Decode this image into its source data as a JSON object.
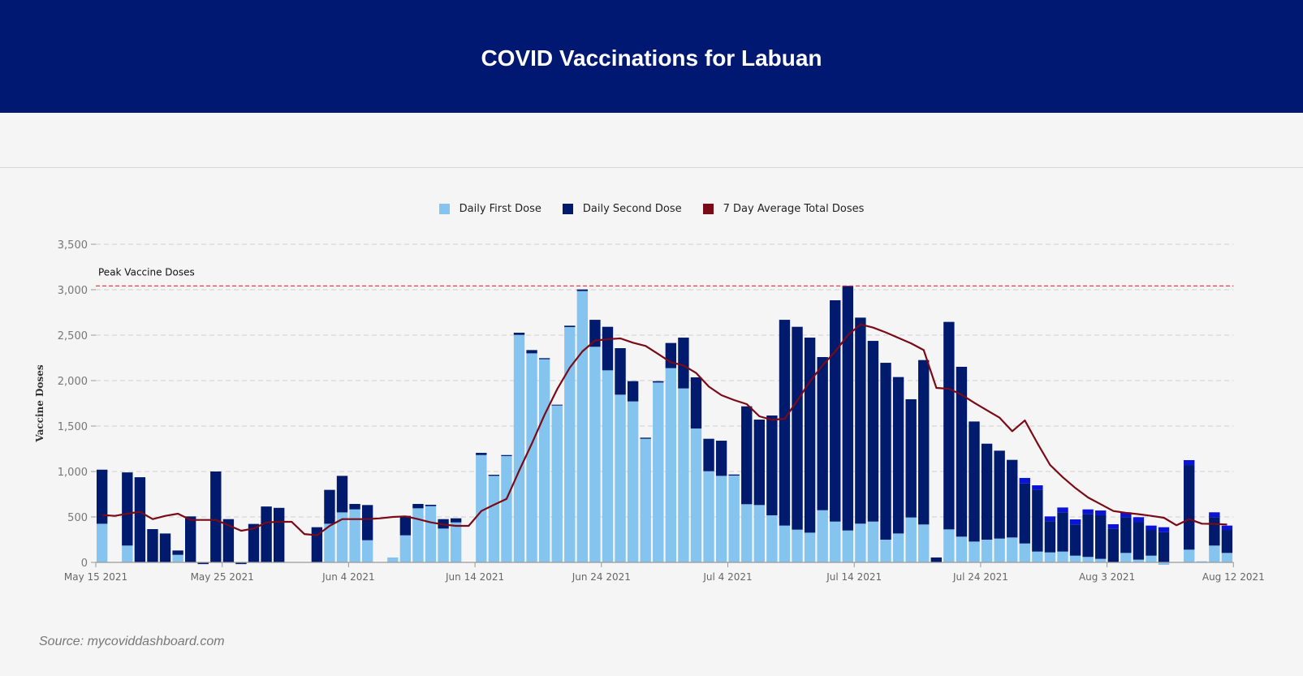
{
  "header": {
    "title": "COVID Vaccinations for Labuan"
  },
  "source": "Source: mycoviddashboard.com",
  "colors": {
    "first": "#85c4ef",
    "second": "#001a6e",
    "third": "#0a14d6",
    "average": "#7a0a16",
    "peak": "#e0323c",
    "header": "#001872"
  },
  "chart_data": {
    "type": "bar",
    "stacked": true,
    "ylabel": "Vaccine Doses",
    "ylim": [
      0,
      3500
    ],
    "yticks": [
      0,
      500,
      1000,
      1500,
      2000,
      2500,
      3000,
      3500
    ],
    "ytick_labels": [
      "0",
      "500",
      "1,000",
      "1,500",
      "2,000",
      "2,500",
      "3,000",
      "3,500"
    ],
    "grid": true,
    "legend_position": "top-center",
    "legend": [
      "Daily First Dose",
      "Daily Second Dose",
      "7 Day Average Total Doses"
    ],
    "num_days": 90,
    "x_ticks": [
      {
        "day": 0,
        "label": "May 15 2021"
      },
      {
        "day": 10,
        "label": "May 25 2021"
      },
      {
        "day": 20,
        "label": "Jun 4 2021"
      },
      {
        "day": 30,
        "label": "Jun 14 2021"
      },
      {
        "day": 40,
        "label": "Jun 24 2021"
      },
      {
        "day": 50,
        "label": "Jul 4 2021"
      },
      {
        "day": 60,
        "label": "Jul 14 2021"
      },
      {
        "day": 70,
        "label": "Jul 24 2021"
      },
      {
        "day": 80,
        "label": "Aug 3 2021"
      },
      {
        "day": 89,
        "label": "Aug 12 2021"
      }
    ],
    "peak": {
      "value": 3042,
      "label": "Peak Vaccine Doses"
    },
    "series": {
      "first": [
        425,
        0,
        185,
        0,
        0,
        0,
        83,
        0,
        0,
        0,
        0,
        0,
        0,
        0,
        0,
        0,
        0,
        0,
        425,
        550,
        583,
        244,
        0,
        54,
        298,
        595,
        619,
        372,
        440,
        0,
        1181,
        952,
        1170,
        2503,
        2300,
        2235,
        1726,
        2589,
        2985,
        2372,
        2113,
        1845,
        1771,
        1360,
        1979,
        2137,
        1914,
        1473,
        1003,
        952,
        955,
        640,
        631,
        518,
        405,
        360,
        327,
        574,
        449,
        351,
        426,
        449,
        250,
        318,
        494,
        417,
        0,
        363,
        283,
        229,
        250,
        262,
        274,
        208,
        119,
        110,
        119,
        74,
        60,
        39,
        0,
        104,
        30,
        74,
        -18,
        0,
        140,
        12,
        185,
        104
      ],
      "second": [
        595,
        0,
        805,
        937,
        366,
        318,
        48,
        506,
        -10,
        1000,
        476,
        -10,
        423,
        615,
        600,
        0,
        0,
        387,
        373,
        402,
        60,
        387,
        0,
        0,
        214,
        48,
        15,
        104,
        45,
        0,
        24,
        12,
        11,
        24,
        36,
        12,
        9,
        15,
        18,
        297,
        479,
        512,
        223,
        12,
        15,
        277,
        559,
        563,
        357,
        387,
        12,
        1077,
        940,
        1098,
        2264,
        2232,
        2146,
        1685,
        2435,
        2691,
        2267,
        1988,
        1946,
        1721,
        1301,
        1809,
        54,
        2283,
        1869,
        1321,
        1056,
        967,
        854,
        661,
        679,
        342,
        432,
        343,
        470,
        479,
        369,
        393,
        416,
        283,
        333,
        0,
        931,
        0,
        312,
        253
      ],
      "third": [
        0,
        0,
        0,
        0,
        0,
        0,
        0,
        0,
        0,
        0,
        0,
        0,
        0,
        0,
        0,
        0,
        0,
        0,
        0,
        0,
        0,
        0,
        0,
        0,
        0,
        0,
        0,
        0,
        0,
        0,
        0,
        0,
        0,
        0,
        0,
        0,
        0,
        0,
        0,
        0,
        0,
        0,
        0,
        0,
        0,
        0,
        0,
        0,
        0,
        0,
        0,
        0,
        0,
        0,
        0,
        0,
        0,
        0,
        0,
        0,
        0,
        0,
        0,
        0,
        0,
        0,
        0,
        0,
        0,
        0,
        0,
        0,
        0,
        60,
        50,
        54,
        53,
        56,
        53,
        53,
        51,
        54,
        51,
        48,
        54,
        0,
        54,
        0,
        54,
        48
      ],
      "average": [
        521,
        512,
        536,
        556,
        476,
        512,
        536,
        467,
        467,
        467,
        408,
        348,
        372,
        440,
        446,
        446,
        312,
        298,
        402,
        476,
        476,
        476,
        485,
        500,
        506,
        476,
        440,
        417,
        402,
        402,
        565,
        634,
        699,
        1012,
        1309,
        1622,
        1905,
        2143,
        2321,
        2440,
        2455,
        2464,
        2417,
        2381,
        2292,
        2202,
        2167,
        2083,
        1934,
        1839,
        1786,
        1741,
        1607,
        1568,
        1580,
        1780,
        1990,
        2170,
        2320,
        2500,
        2619,
        2583,
        2530,
        2470,
        2410,
        2336,
        1920,
        1910,
        1845,
        1756,
        1673,
        1592,
        1443,
        1562,
        1309,
        1071,
        937,
        818,
        714,
        640,
        565,
        545,
        530,
        512,
        491,
        408,
        476,
        426,
        423,
        417
      ]
    }
  }
}
